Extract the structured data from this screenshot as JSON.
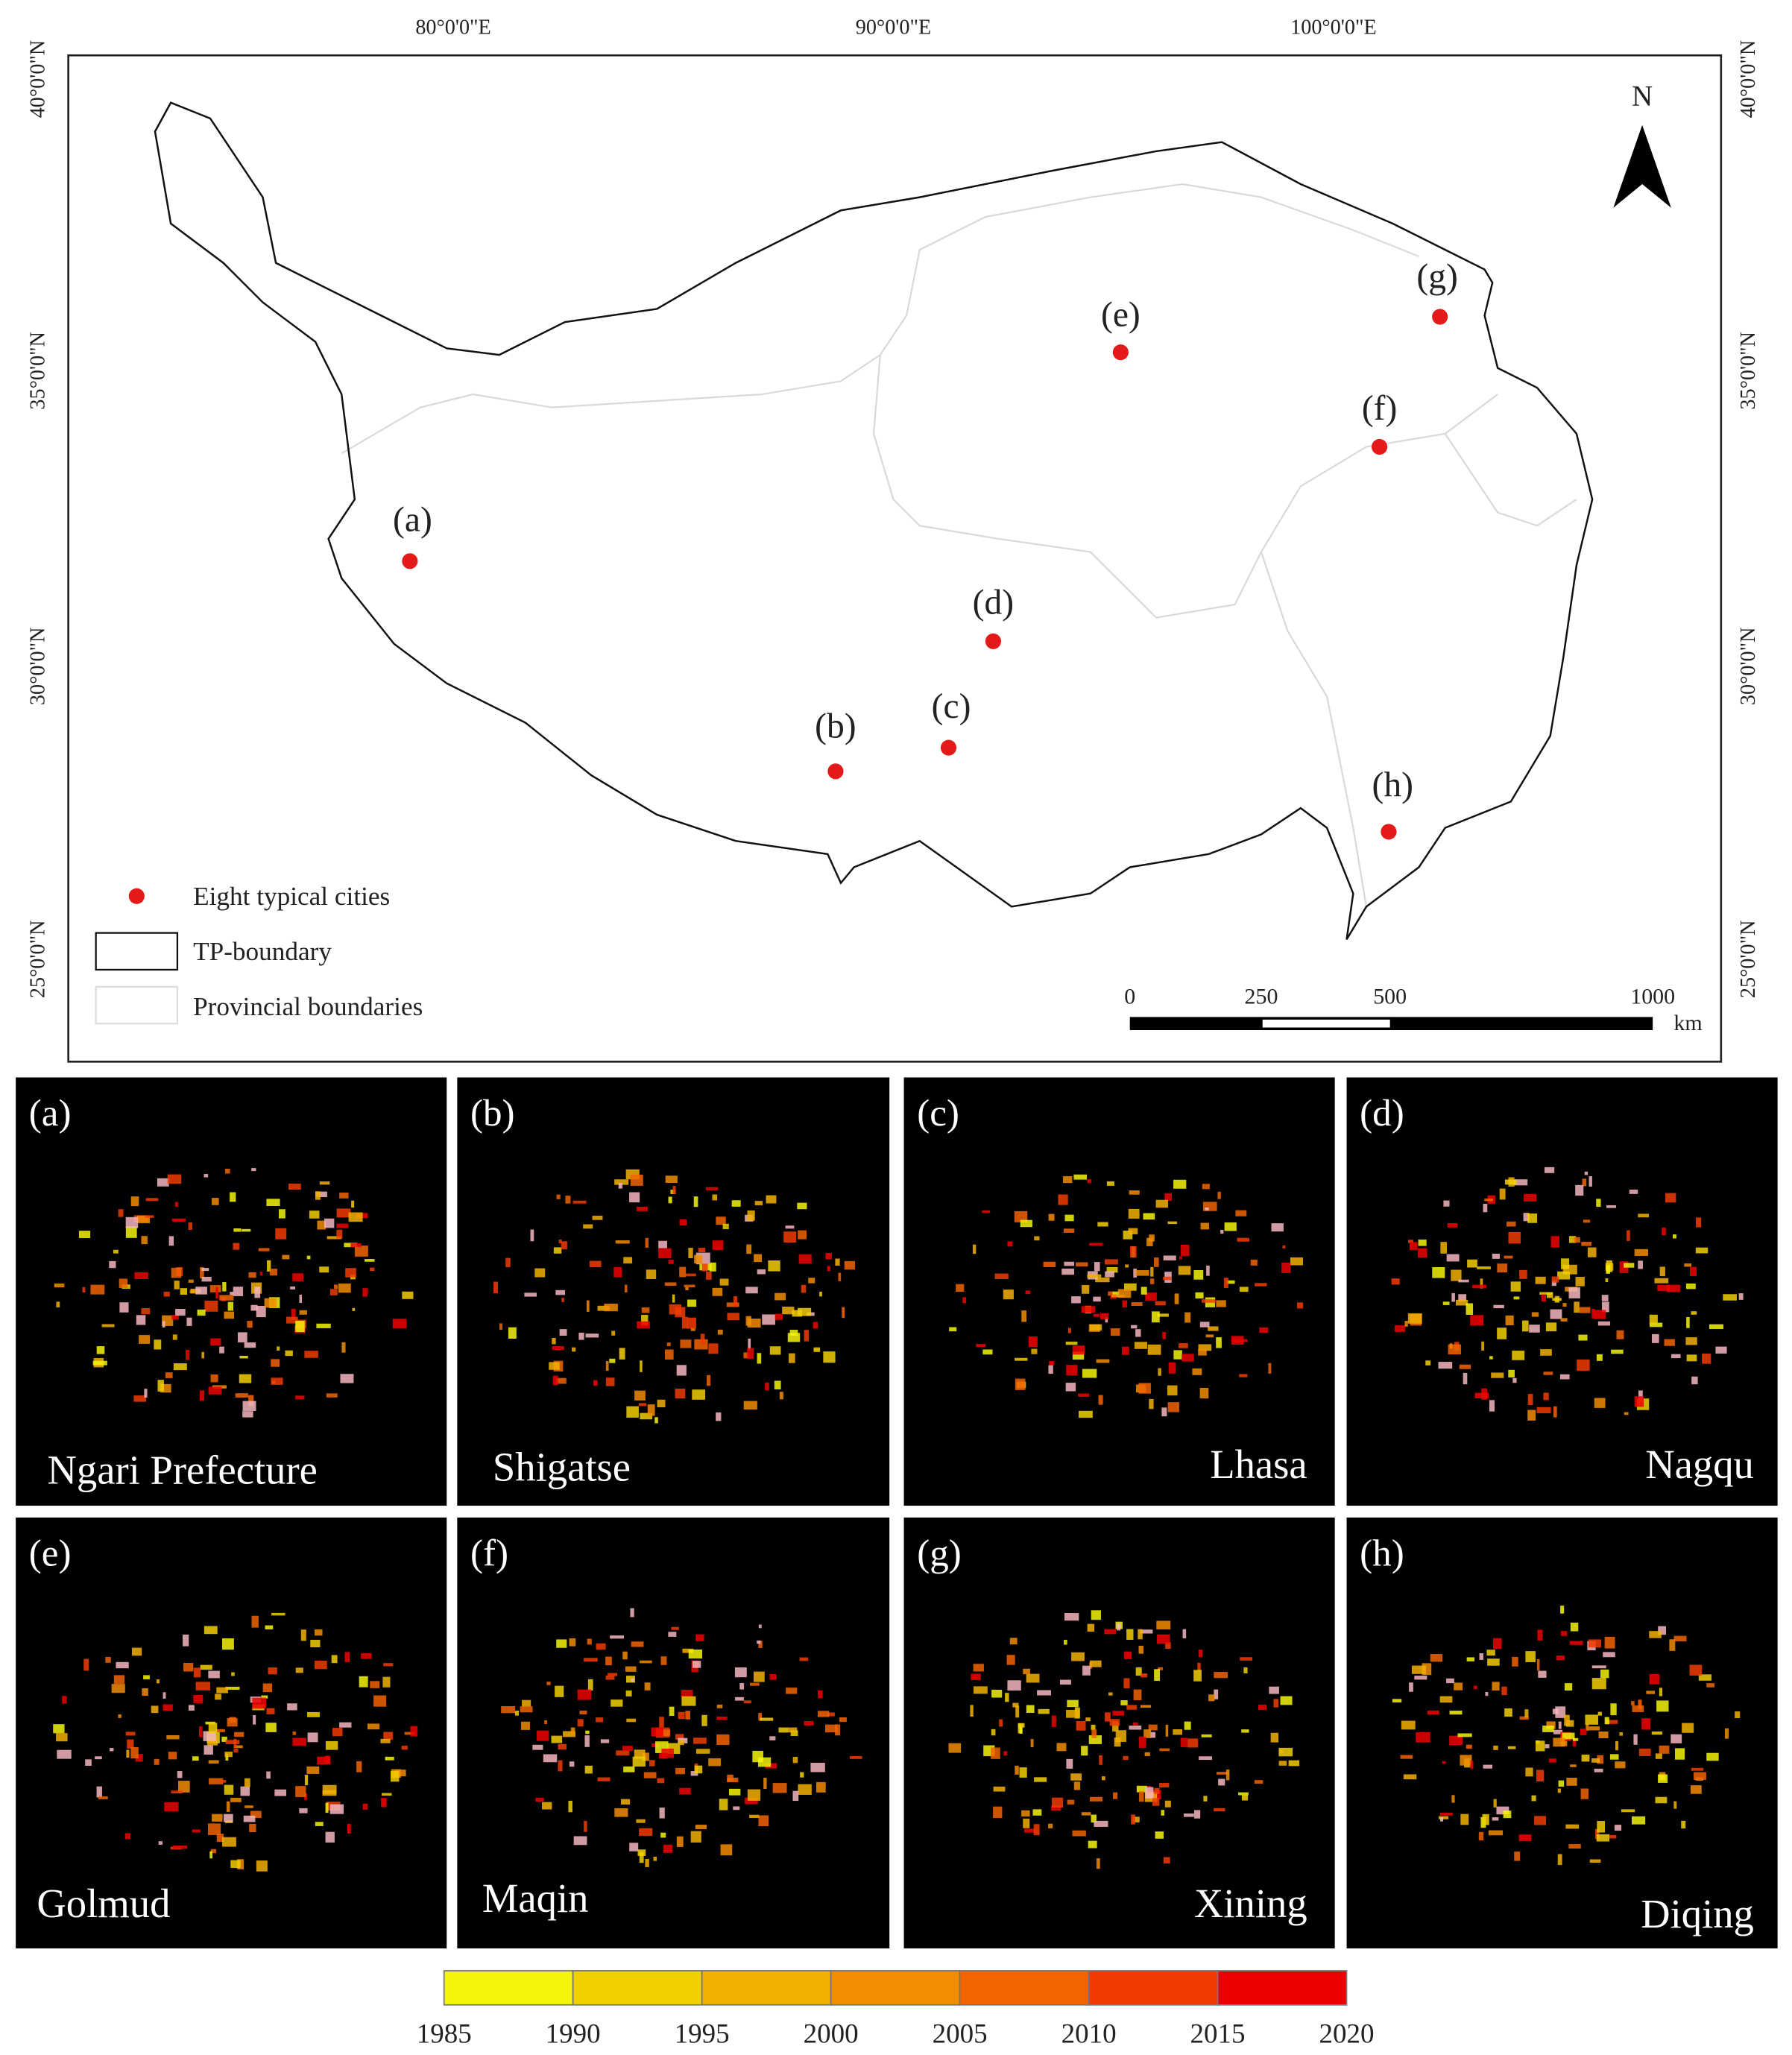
{
  "map": {
    "top_labels": [
      "80°0'0\"E",
      "90°0'0\"E",
      "100°0'0\"E"
    ],
    "left_labels": [
      "40°0'0\"N",
      "35°0'0\"N",
      "30°0'0\"N",
      "25°0'0\"N"
    ],
    "north": "N",
    "cities": [
      "(a)",
      "(b)",
      "(c)",
      "(d)",
      "(e)",
      "(f)",
      "(g)",
      "(h)"
    ],
    "legend": [
      "Eight typical cities",
      "TP-boundary",
      "Provincial boundaries"
    ],
    "scale_bar": {
      "ticks": [
        "0",
        "250",
        "500",
        "1000"
      ],
      "unit": "km"
    }
  },
  "panels": [
    {
      "label": "(a)",
      "name": "Ngari Prefecture"
    },
    {
      "label": "(b)",
      "name": "Shigatse"
    },
    {
      "label": "(c)",
      "name": "Lhasa"
    },
    {
      "label": "(d)",
      "name": "Nagqu"
    },
    {
      "label": "(e)",
      "name": "Golmud"
    },
    {
      "label": "(f)",
      "name": "Maqin"
    },
    {
      "label": "(g)",
      "name": "Xining"
    },
    {
      "label": "(h)",
      "name": "Diqing"
    }
  ],
  "colorbar": {
    "labels": [
      1985,
      1990,
      1995,
      2000,
      2005,
      2010,
      2015,
      2020
    ],
    "colors": [
      "#f4f40c",
      "#f2d000",
      "#f2b000",
      "#f28c00",
      "#f26400",
      "#f03c00",
      "#ee0000"
    ]
  }
}
